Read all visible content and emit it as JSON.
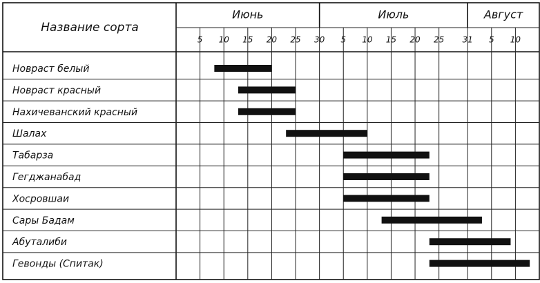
{
  "chart_data": {
    "type": "gantt",
    "column_header": "Название сорта",
    "months": [
      {
        "label": "Июнь",
        "start": 0,
        "end": 30
      },
      {
        "label": "Июль",
        "start": 30,
        "end": 61
      },
      {
        "label": "Август",
        "start": 61,
        "end": 76
      }
    ],
    "categories": [
      "Новраст белый",
      "Новраст красный",
      "Нахичеванский красный",
      "Шалах",
      "Табарза",
      "Гегджанабад",
      "Хосровшаи",
      "Сары Бадам",
      "Абуталиби",
      "Гевонды (Спитак)"
    ],
    "starts": [
      8,
      13,
      13,
      23,
      35,
      35,
      35,
      43,
      53,
      53
    ],
    "ends": [
      20,
      25,
      25,
      40,
      53,
      53,
      53,
      64,
      70,
      74
    ],
    "color": "#111111",
    "xlim": [
      0,
      76
    ],
    "xticks": [
      5,
      10,
      15,
      20,
      25,
      30,
      {
        "value": 35,
        "label": "5"
      },
      {
        "value": 40,
        "label": "10"
      },
      {
        "value": 45,
        "label": "15"
      },
      {
        "value": 50,
        "label": "20"
      },
      {
        "value": 55,
        "label": "25"
      },
      {
        "value": 61,
        "label": "31"
      },
      {
        "value": 66,
        "label": "5"
      },
      {
        "value": 71,
        "label": "10"
      }
    ],
    "grid": true
  }
}
